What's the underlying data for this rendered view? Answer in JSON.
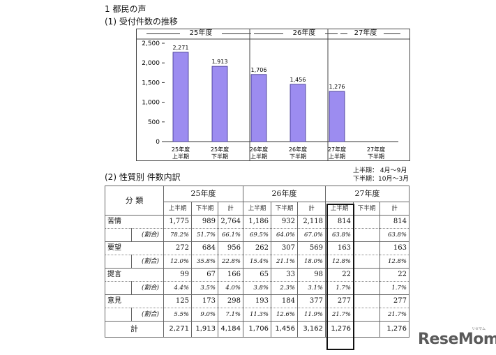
{
  "headings": {
    "section": "1 都民の声",
    "chart_title": "(1) 受付件数の推移",
    "table_title": "(2) 性質別 件数内訳"
  },
  "chart_data": {
    "type": "bar",
    "bar_color": "#9c8cf0",
    "year_groups": [
      "25年度",
      "26年度",
      "27年度"
    ],
    "categories": [
      "25年度上半期",
      "25年度下半期",
      "26年度上半期",
      "26年度下半期",
      "27年度上半期",
      "27年度下半期"
    ],
    "category_lines": [
      [
        "25年度",
        "上半期"
      ],
      [
        "25年度",
        "下半期"
      ],
      [
        "26年度",
        "上半期"
      ],
      [
        "26年度",
        "下半期"
      ],
      [
        "27年度",
        "上半期"
      ],
      [
        "27年度",
        "下半期"
      ]
    ],
    "values": [
      2271,
      1913,
      1706,
      1456,
      1276,
      null
    ],
    "value_labels": [
      "2,271",
      "1,913",
      "1,706",
      "1,456",
      "1,276",
      ""
    ],
    "y_ticks": [
      "0",
      "500",
      "1,000",
      "1,500",
      "2,000",
      "2,500"
    ],
    "ylim": [
      0,
      2500
    ],
    "grid": false
  },
  "period_notes": [
    "上半期： 4月～9月",
    "下半期：10月～3月"
  ],
  "table": {
    "category_header": "分 類",
    "years": [
      "25年度",
      "26年度",
      "27年度"
    ],
    "subheaders": [
      "上半期",
      "下半期",
      "計"
    ],
    "ratio_label": "(割合)",
    "rows": [
      {
        "label": "苦情",
        "values": [
          "1,775",
          "989",
          "2,764",
          "1,186",
          "932",
          "2,118",
          "814",
          "",
          "814"
        ],
        "ratios": [
          "78.2%",
          "51.7%",
          "66.1%",
          "69.5%",
          "64.0%",
          "67.0%",
          "63.8%",
          "",
          "63.8%"
        ]
      },
      {
        "label": "要望",
        "values": [
          "272",
          "684",
          "956",
          "262",
          "307",
          "569",
          "163",
          "",
          "163"
        ],
        "ratios": [
          "12.0%",
          "35.8%",
          "22.8%",
          "15.4%",
          "21.1%",
          "18.0%",
          "12.8%",
          "",
          "12.8%"
        ]
      },
      {
        "label": "提言",
        "values": [
          "99",
          "67",
          "166",
          "65",
          "33",
          "98",
          "22",
          "",
          "22"
        ],
        "ratios": [
          "4.4%",
          "3.5%",
          "4.0%",
          "3.8%",
          "2.3%",
          "3.1%",
          "1.7%",
          "",
          "1.7%"
        ]
      },
      {
        "label": "意見",
        "values": [
          "125",
          "173",
          "298",
          "193",
          "184",
          "377",
          "277",
          "",
          "277"
        ],
        "ratios": [
          "5.5%",
          "9.0%",
          "7.1%",
          "11.3%",
          "12.6%",
          "11.9%",
          "21.7%",
          "",
          "21.7%"
        ]
      }
    ],
    "total_label": "計",
    "totals": [
      "2,271",
      "1,913",
      "4,184",
      "1,706",
      "1,456",
      "3,162",
      "1,276",
      "",
      "1,276"
    ]
  },
  "watermark": {
    "text": "ReseMom",
    "kana": "リセマム"
  }
}
